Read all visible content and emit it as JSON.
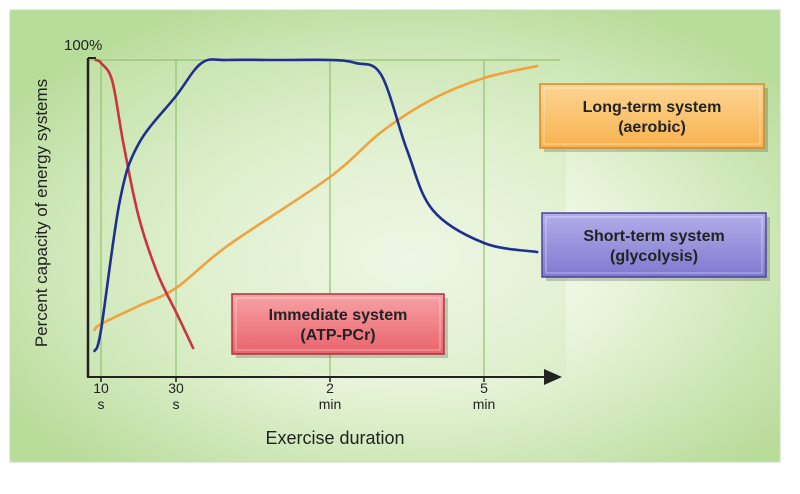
{
  "chart_data": {
    "type": "line",
    "title": "",
    "xlabel": "Exercise duration",
    "ylabel": "Percent capacity of energy systems",
    "y_tick_label": "100%",
    "ylim": [
      0,
      100
    ],
    "x_ticks": [
      {
        "value": 10,
        "line1": "10",
        "line2": "s"
      },
      {
        "value": 30,
        "line1": "30",
        "line2": "s"
      },
      {
        "value": 120,
        "line1": "2",
        "line2": "min"
      },
      {
        "value": 300,
        "line1": "5",
        "line2": "min"
      }
    ],
    "x_unit": "seconds",
    "grid": true,
    "series": [
      {
        "name": "Immediate system (ATP-PCr)",
        "label_lines": [
          "Immediate system",
          "(ATP-PCr)"
        ],
        "color": "#cc3340",
        "box_color": "#f0767e",
        "x": [
          6,
          10,
          13,
          16,
          20,
          25,
          30,
          40
        ],
        "y": [
          100,
          99,
          93,
          72,
          48,
          29,
          16,
          4
        ]
      },
      {
        "name": "Short-term system (glycolysis)",
        "label_lines": [
          "Short-term system",
          "(glycolysis)"
        ],
        "color": "#1f2f8f",
        "box_color": "#8d87d6",
        "x": [
          5,
          10,
          15,
          20,
          30,
          45,
          60,
          90,
          120,
          150,
          180,
          210,
          240,
          300,
          370
        ],
        "y": [
          3,
          10,
          53,
          72,
          88,
          99,
          100,
          100,
          100,
          99,
          95,
          70,
          50,
          39,
          36
        ]
      },
      {
        "name": "Long-term system (aerobic)",
        "label_lines": [
          "Long-term system",
          "(aerobic)"
        ],
        "color": "#f2a23c",
        "box_color": "#fbc46e",
        "x": [
          5,
          10,
          20,
          30,
          60,
          120,
          180,
          240,
          300,
          370
        ],
        "y": [
          10,
          12,
          18,
          24,
          38,
          61,
          76,
          87,
          94,
          98
        ]
      }
    ]
  }
}
